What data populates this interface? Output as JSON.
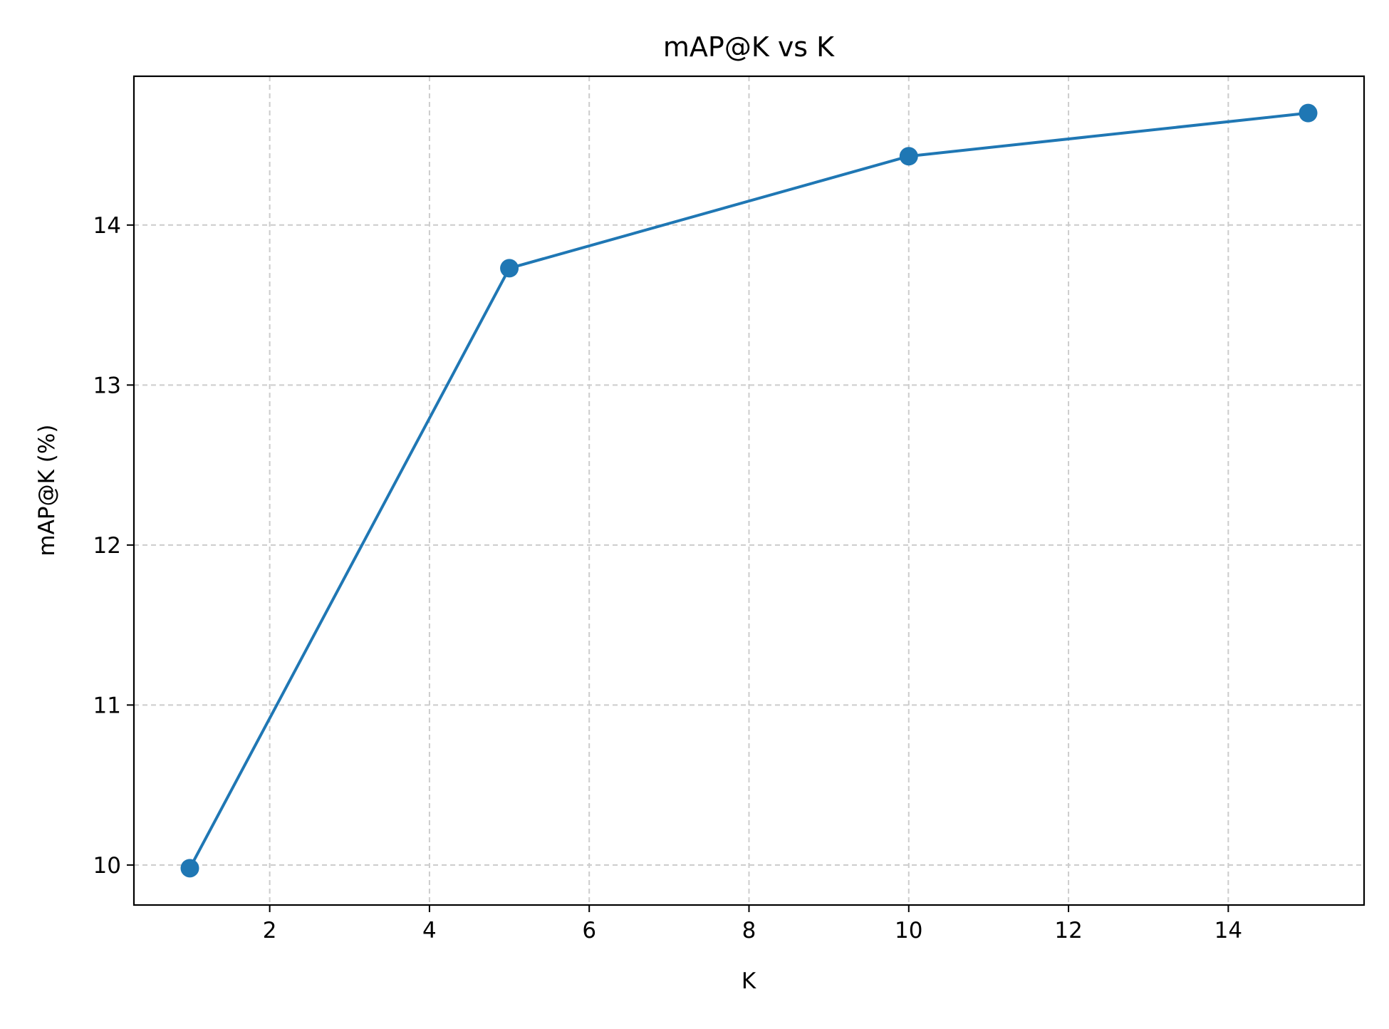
{
  "chart_data": {
    "type": "line",
    "title": "mAP@K vs K",
    "xlabel": "K",
    "ylabel": "mAP@K (%)",
    "xlim": [
      0.3,
      15.7
    ],
    "ylim": [
      9.75,
      14.93
    ],
    "xticks": [
      2,
      4,
      6,
      8,
      10,
      12,
      14
    ],
    "yticks": [
      10,
      11,
      12,
      13,
      14
    ],
    "grid": true,
    "legend": "none",
    "series": [
      {
        "x": [
          1,
          5,
          10,
          15
        ],
        "y": [
          9.98,
          13.73,
          14.43,
          14.7
        ],
        "color": "#1f77b4",
        "marker": "circle"
      }
    ],
    "colors": {
      "line": "#1f77b4",
      "grid": "#cccccc",
      "frame": "#000000",
      "background": "#ffffff"
    }
  }
}
